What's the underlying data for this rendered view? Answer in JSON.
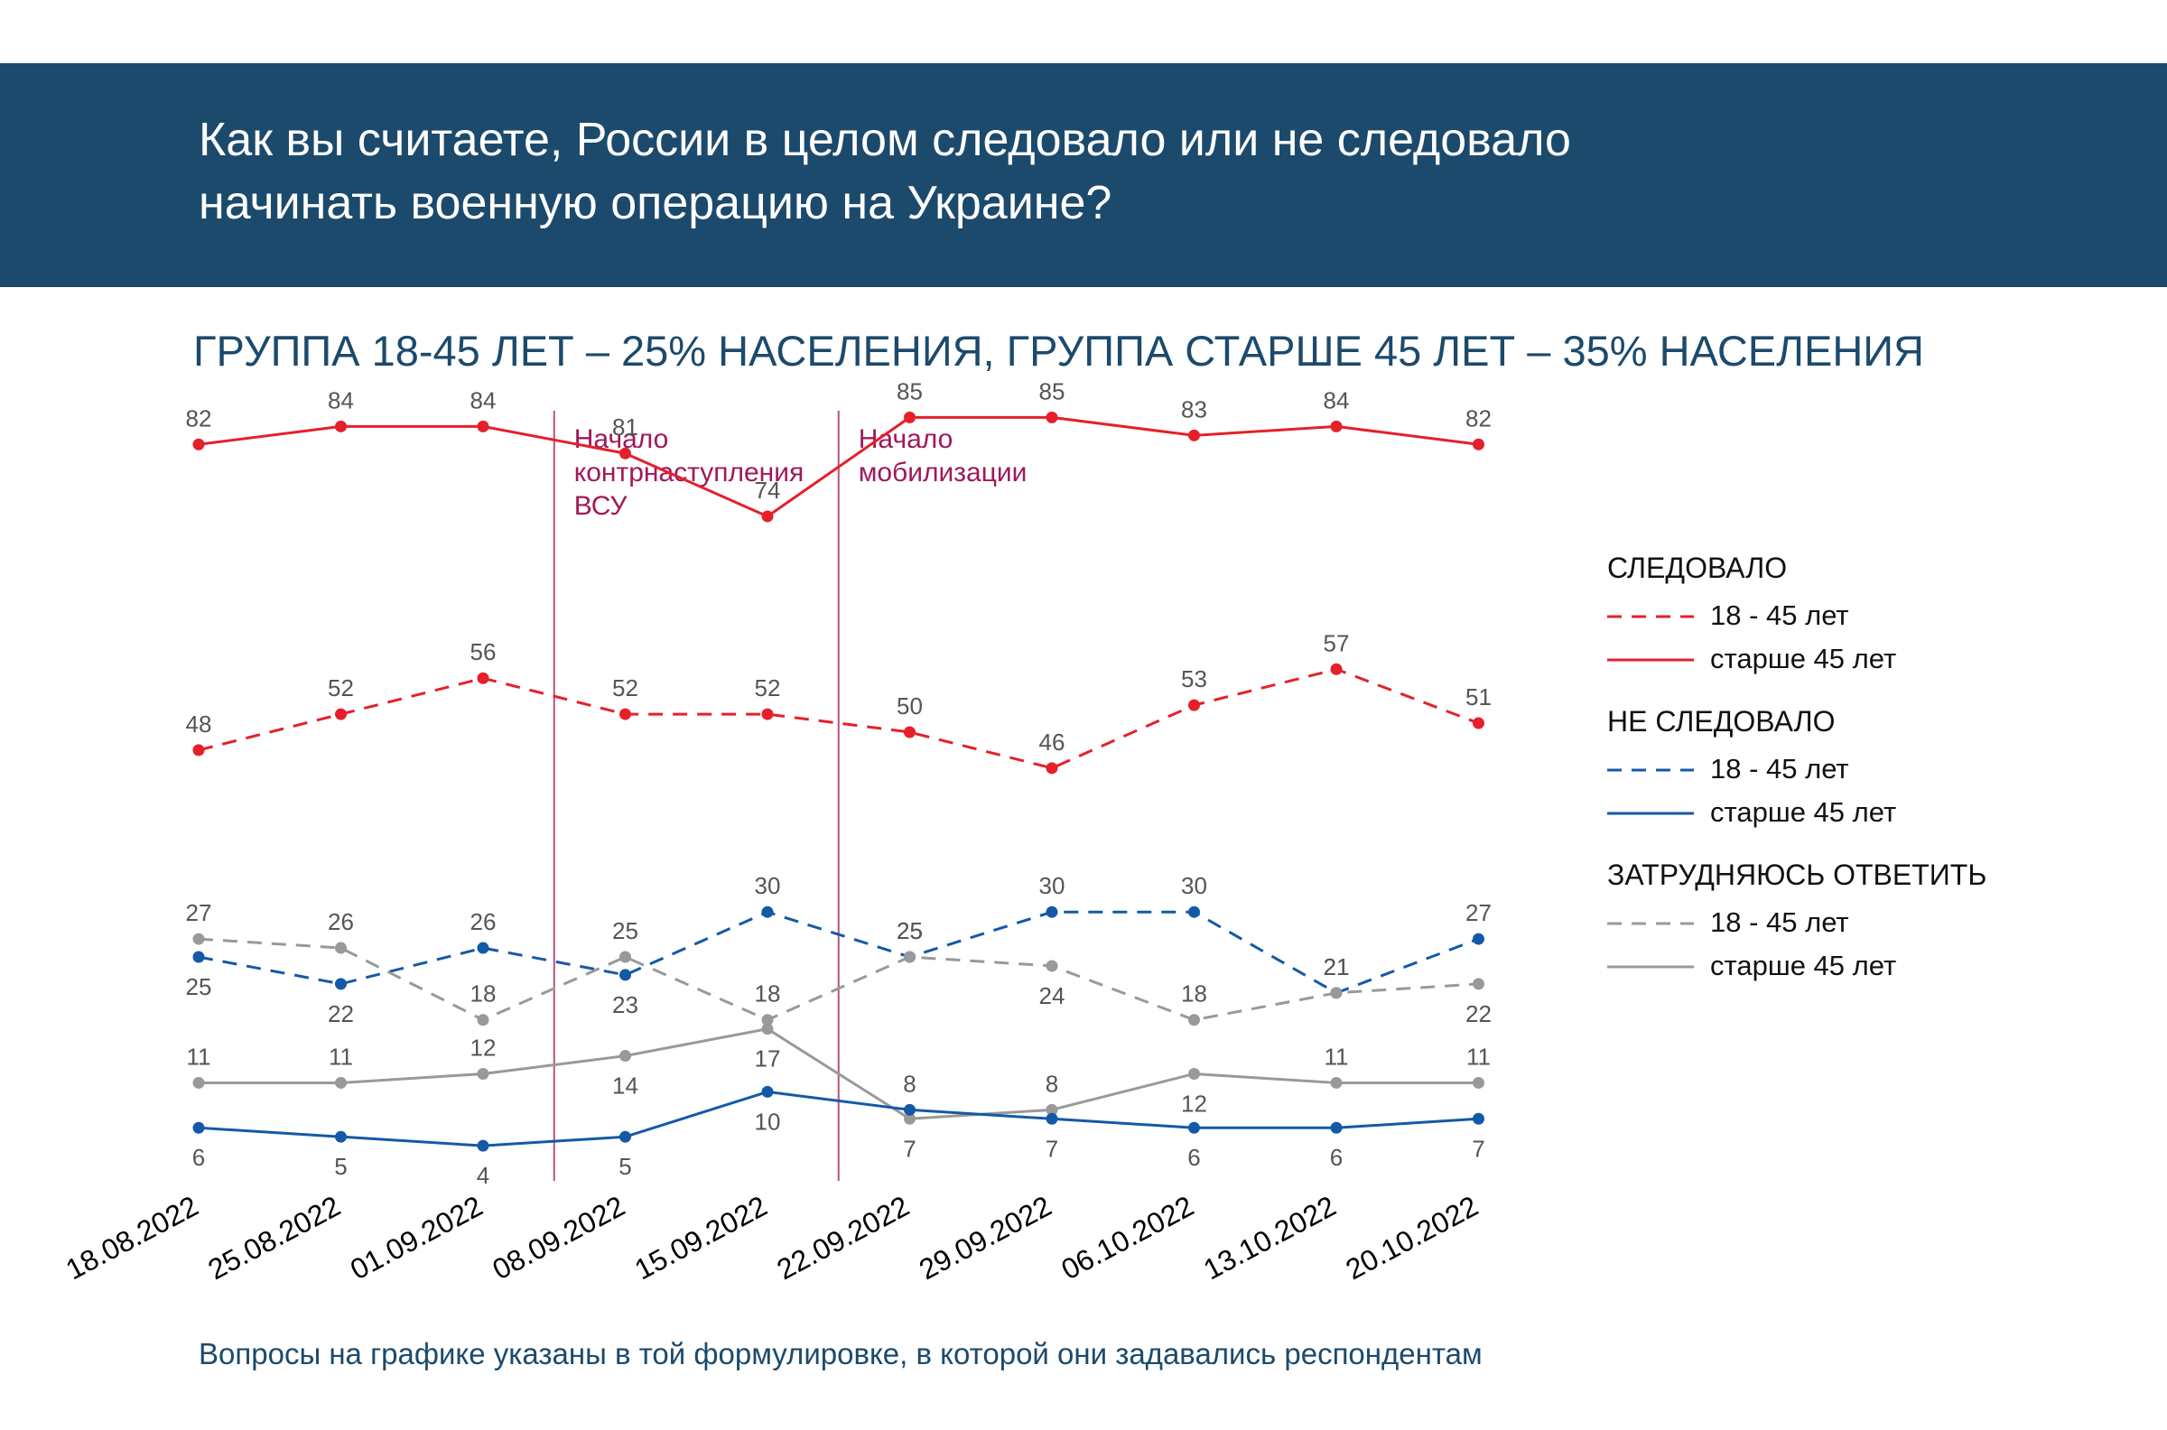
{
  "header": {
    "title_line1": "Как вы считаете, России в целом следовало или не следовало",
    "title_line2": "начинать военную операцию на Украине?"
  },
  "subtitle": "ГРУППА 18-45 ЛЕТ – 25% НАСЕЛЕНИЯ, ГРУППА СТАРШЕ 45 ЛЕТ – 35% НАСЕЛЕНИЯ",
  "footnote": "Вопросы на графике указаны в той формулировке, в которой они задавались респондентам",
  "legend": {
    "groups": [
      {
        "title": "СЛЕДОВАЛО",
        "color": "#e5202a",
        "items": [
          {
            "label": "18 - 45 лет",
            "style": "dashed"
          },
          {
            "label": "старше 45 лет",
            "style": "solid"
          }
        ]
      },
      {
        "title": "НЕ СЛЕДОВАЛО",
        "color": "#1459a6",
        "items": [
          {
            "label": "18 - 45 лет",
            "style": "dashed"
          },
          {
            "label": "старше 45 лет",
            "style": "solid"
          }
        ]
      },
      {
        "title": "ЗАТРУДНЯЮСЬ ОТВЕТИТЬ",
        "color": "#999999",
        "items": [
          {
            "label": "18 - 45 лет",
            "style": "dashed"
          },
          {
            "label": "старше 45 лет",
            "style": "solid"
          }
        ]
      }
    ]
  },
  "chart_data": {
    "type": "line",
    "title": "ГРУППА 18-45 ЛЕТ – 25% НАСЕЛЕНИЯ, ГРУППА СТАРШЕ 45 ЛЕТ – 35% НАСЕЛЕНИЯ",
    "xlabel": "",
    "ylabel": "",
    "ylim": [
      0,
      100
    ],
    "grid": false,
    "legend_position": "right",
    "categories": [
      "18.08.2022",
      "25.08.2022",
      "01.09.2022",
      "08.09.2022",
      "15.09.2022",
      "22.09.2022",
      "29.09.2022",
      "06.10.2022",
      "13.10.2022",
      "20.10.2022"
    ],
    "annotations": [
      {
        "text": "Начало контрнаступления ВСУ",
        "lines": [
          "Начало",
          "контрнаступления",
          "ВСУ"
        ],
        "between": [
          "01.09.2022",
          "08.09.2022"
        ],
        "color": "#a0185a"
      },
      {
        "text": "Начало мобилизации",
        "lines": [
          "Начало",
          "мобилизации"
        ],
        "between": [
          "15.09.2022",
          "22.09.2022"
        ],
        "color": "#a0185a"
      }
    ],
    "series": [
      {
        "name": "СЛЕДОВАЛО — старше 45 лет",
        "color": "#e5202a",
        "style": "solid",
        "values": [
          82,
          84,
          84,
          81,
          74,
          85,
          85,
          83,
          84,
          82
        ],
        "label_pos": [
          "above",
          "above",
          "above",
          "above",
          "above",
          "above",
          "above",
          "above",
          "above",
          "above"
        ]
      },
      {
        "name": "СЛЕДОВАЛО — 18 - 45 лет",
        "color": "#e5202a",
        "style": "dashed",
        "values": [
          48,
          52,
          56,
          52,
          52,
          50,
          46,
          53,
          57,
          51
        ],
        "label_pos": [
          "above",
          "above",
          "above",
          "above",
          "above",
          "above",
          "above",
          "above",
          "above",
          "above"
        ]
      },
      {
        "name": "НЕ СЛЕДОВАЛО — 18 - 45 лет",
        "color": "#1459a6",
        "style": "dashed",
        "values": [
          25,
          22,
          26,
          23,
          30,
          25,
          30,
          30,
          21,
          27
        ],
        "label_pos": [
          "below",
          "below",
          "above",
          "below",
          "above",
          "above",
          "above",
          "above",
          "above",
          "above"
        ]
      },
      {
        "name": "ЗАТРУДНЯЮСЬ ОТВЕТИТЬ — 18 - 45 лет",
        "color": "#999999",
        "style": "dashed",
        "values": [
          27,
          26,
          18,
          25,
          18,
          25,
          24,
          18,
          21,
          22
        ],
        "label_pos": [
          "above",
          "above",
          "above",
          "above",
          "above",
          "above",
          "below",
          "above",
          "above",
          "below"
        ]
      },
      {
        "name": "ЗАТРУДНЯЮСЬ ОТВЕТИТЬ — старше 45 лет",
        "color": "#999999",
        "style": "solid",
        "values": [
          11,
          11,
          12,
          14,
          17,
          7,
          8,
          12,
          11,
          11
        ],
        "label_pos": [
          "above",
          "above",
          "above",
          "below",
          "below",
          "below",
          "above",
          "below",
          "above",
          "above"
        ]
      },
      {
        "name": "НЕ СЛЕДОВАЛО — старше 45 лет",
        "color": "#1459a6",
        "style": "solid",
        "values": [
          6,
          5,
          4,
          5,
          10,
          8,
          7,
          6,
          6,
          7
        ],
        "label_pos": [
          "below",
          "below",
          "below",
          "below",
          "below",
          "above",
          "below",
          "below",
          "below",
          "below"
        ]
      }
    ]
  }
}
